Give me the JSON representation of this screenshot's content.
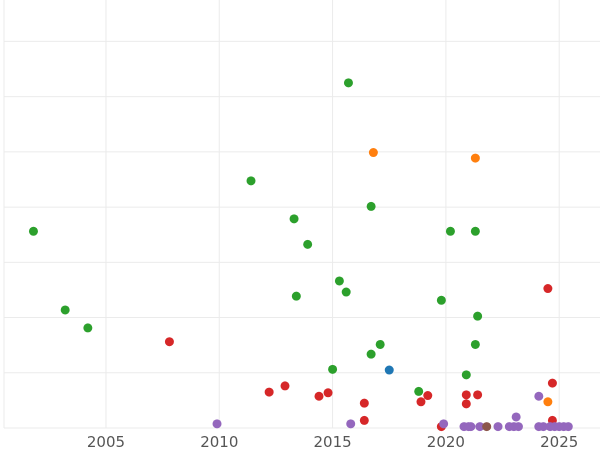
{
  "chart_data": {
    "type": "scatter",
    "title": "",
    "xlabel": "",
    "ylabel": "",
    "xlim": [
      2000.5,
      2026.8
    ],
    "ylim": [
      0,
      62
    ],
    "x_ticks": [
      2005,
      2010,
      2015,
      2020,
      2025
    ],
    "y_grid": [
      0,
      8,
      16,
      24,
      32,
      40,
      48,
      56
    ],
    "grid": true,
    "legend": "none",
    "series": [
      {
        "color": "#2ca02c",
        "points": [
          [
            2001.8,
            28.5
          ],
          [
            2003.2,
            17.1
          ],
          [
            2004.2,
            14.5
          ],
          [
            2011.4,
            35.8
          ],
          [
            2013.3,
            30.3
          ],
          [
            2013.4,
            19.1
          ],
          [
            2013.9,
            26.6
          ],
          [
            2015.0,
            8.5
          ],
          [
            2015.3,
            21.3
          ],
          [
            2015.6,
            19.7
          ],
          [
            2015.7,
            50.0
          ],
          [
            2016.7,
            10.7
          ],
          [
            2016.7,
            32.1
          ],
          [
            2017.1,
            12.1
          ],
          [
            2018.8,
            5.3
          ],
          [
            2019.8,
            18.5
          ],
          [
            2020.2,
            28.5
          ],
          [
            2020.9,
            7.7
          ],
          [
            2021.3,
            28.5
          ],
          [
            2021.3,
            12.1
          ],
          [
            2021.4,
            16.2
          ]
        ]
      },
      {
        "color": "#ff7f0e",
        "points": [
          [
            2016.8,
            39.9
          ],
          [
            2021.3,
            39.1
          ],
          [
            2024.5,
            3.8
          ]
        ]
      },
      {
        "color": "#d62728",
        "points": [
          [
            2007.8,
            12.5
          ],
          [
            2012.2,
            5.2
          ],
          [
            2012.9,
            6.1
          ],
          [
            2014.4,
            4.6
          ],
          [
            2014.8,
            5.1
          ],
          [
            2016.4,
            3.6
          ],
          [
            2016.4,
            1.1
          ],
          [
            2018.9,
            3.8
          ],
          [
            2019.2,
            4.7
          ],
          [
            2019.8,
            0.2
          ],
          [
            2020.9,
            3.5
          ],
          [
            2020.9,
            4.8
          ],
          [
            2021.4,
            4.8
          ],
          [
            2024.5,
            20.2
          ],
          [
            2024.7,
            6.5
          ],
          [
            2024.7,
            1.1
          ]
        ]
      },
      {
        "color": "#1f77b4",
        "points": [
          [
            2017.5,
            8.4
          ]
        ]
      },
      {
        "color": "#9467bd",
        "points": [
          [
            2009.9,
            0.6
          ],
          [
            2015.8,
            0.6
          ],
          [
            2019.9,
            0.6
          ],
          [
            2020.8,
            0.2
          ],
          [
            2021.0,
            0.2
          ],
          [
            2021.1,
            0.2
          ],
          [
            2021.5,
            0.2
          ],
          [
            2022.3,
            0.2
          ],
          [
            2022.8,
            0.2
          ],
          [
            2023.0,
            0.2
          ],
          [
            2023.1,
            1.6
          ],
          [
            2023.2,
            0.2
          ],
          [
            2024.1,
            0.2
          ],
          [
            2024.1,
            4.6
          ],
          [
            2024.3,
            0.2
          ],
          [
            2024.6,
            0.2
          ],
          [
            2024.8,
            0.2
          ],
          [
            2025.0,
            0.2
          ],
          [
            2025.2,
            0.2
          ],
          [
            2025.4,
            0.2
          ]
        ]
      },
      {
        "color": "#8c564b",
        "points": [
          [
            2021.8,
            0.2
          ]
        ]
      }
    ]
  }
}
